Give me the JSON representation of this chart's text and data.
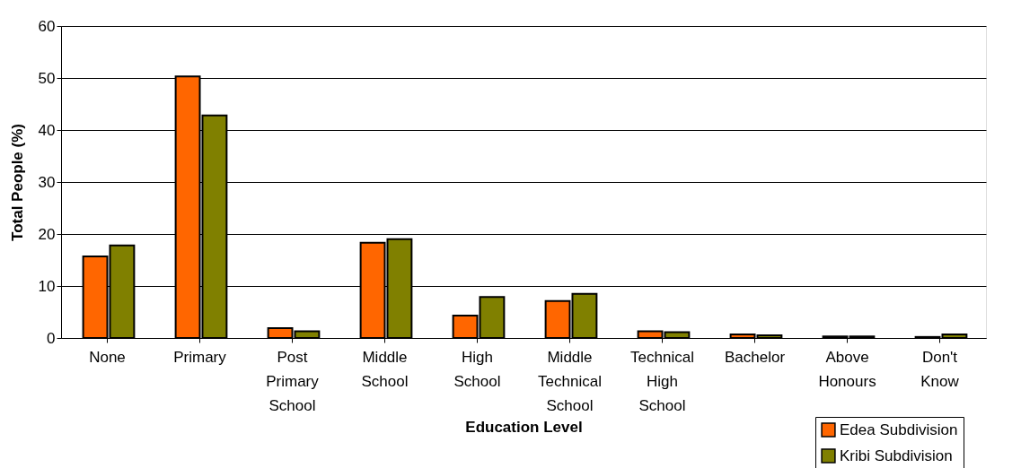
{
  "chart_data": {
    "type": "bar",
    "xlabel": "Education Level",
    "ylabel": "Total People (%)",
    "categories": [
      "None",
      "Primary",
      "Post Primary School",
      "Middle School",
      "High School",
      "Middle Technical School",
      "Technical High School",
      "Bachelor",
      "Above Honours",
      "Don't Know"
    ],
    "series": [
      {
        "name": "Edea Subdivision",
        "color": "#ff6600",
        "values": [
          15.7,
          50.3,
          1.9,
          18.3,
          4.3,
          7.1,
          1.3,
          0.7,
          0.3,
          0.2
        ]
      },
      {
        "name": "Kribi Subdivision",
        "color": "#808000",
        "values": [
          17.8,
          42.8,
          1.3,
          19.0,
          7.9,
          8.5,
          1.1,
          0.5,
          0.3,
          0.7
        ]
      }
    ],
    "ylim": [
      0,
      60
    ],
    "yticks": [
      0,
      10,
      20,
      30,
      40,
      50,
      60
    ],
    "grid": "y",
    "legend": "bottom right"
  }
}
